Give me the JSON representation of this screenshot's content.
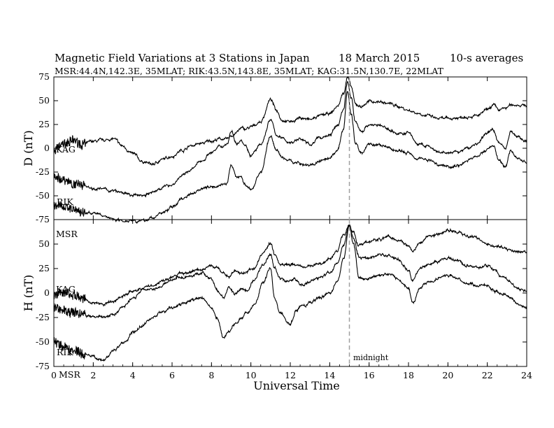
{
  "header": {
    "title": "Magnetic Field Variations at 3 Stations in Japan",
    "date": "18  March   2015",
    "averaging": "10-s averages",
    "stations": "MSR:44.4N,142.3E, 35MLAT;   RIK:43.5N,143.8E, 35MLAT;  KAG:31.5N,130.7E, 22MLAT"
  },
  "annotation": {
    "midnight": "midnight",
    "midnight_ut": 15
  },
  "xaxis": {
    "label": "Universal Time",
    "range": [
      0,
      24
    ],
    "ticks": [
      0,
      2,
      4,
      6,
      8,
      10,
      12,
      14,
      16,
      18,
      20,
      22,
      24
    ]
  },
  "colors": {
    "trace": "#000000",
    "axis": "#000000",
    "midnight_line": "#a0a0a0"
  },
  "chart_data": [
    {
      "type": "line",
      "name": "D",
      "ylabel": "D (nT)",
      "ylim": [
        -75,
        75
      ],
      "yticks": [
        75,
        50,
        25,
        0,
        -25,
        -50,
        -75
      ],
      "x": [
        0,
        0.5,
        1,
        1.5,
        2,
        2.5,
        3,
        3.5,
        4,
        4.5,
        5,
        5.5,
        6,
        6.5,
        7,
        7.5,
        8,
        8.5,
        8.8,
        9,
        9.3,
        9.5,
        9.7,
        10,
        10.5,
        11,
        11.3,
        11.6,
        12,
        12.5,
        13,
        13.5,
        14,
        14.4,
        14.7,
        14.9,
        15.1,
        15.3,
        15.6,
        16,
        16.5,
        17,
        17.5,
        18,
        18.5,
        19,
        19.5,
        20,
        20.5,
        21,
        21.5,
        22,
        22.3,
        22.6,
        22.9,
        23.2,
        23.5,
        24
      ],
      "series": [
        {
          "label": "KAG",
          "values": [
            -3,
            5,
            8,
            4,
            7,
            8,
            10,
            2,
            -6,
            -14,
            -17,
            -12,
            -8,
            -2,
            3,
            5,
            8,
            10,
            9,
            13,
            17,
            21,
            20,
            22,
            28,
            51,
            40,
            30,
            28,
            32,
            30,
            34,
            36,
            44,
            58,
            75,
            64,
            46,
            44,
            49,
            49,
            47,
            44,
            40,
            37,
            34,
            31,
            31,
            32,
            34,
            34,
            40,
            45,
            40,
            42,
            45,
            46,
            45
          ]
        },
        {
          "label": "RIK",
          "values": [
            -30,
            -33,
            -37,
            -38,
            -42,
            -43,
            -45,
            -47,
            -50,
            -49,
            -47,
            -41,
            -38,
            -29,
            -22,
            -13,
            -4,
            2,
            5,
            18,
            5,
            10,
            4,
            -7,
            3,
            30,
            14,
            10,
            6,
            10,
            4,
            11,
            14,
            24,
            41,
            70,
            52,
            28,
            18,
            25,
            24,
            20,
            15,
            16,
            4,
            2,
            -5,
            -5,
            -4,
            0,
            5,
            16,
            20,
            6,
            0,
            18,
            12,
            7
          ]
        },
        {
          "label": "MSR",
          "values": [
            -60,
            -62,
            -65,
            -67,
            -68,
            -71,
            -74,
            -76,
            -75,
            -77,
            -73,
            -68,
            -62,
            -53,
            -47,
            -42,
            -40,
            -38,
            -37,
            -18,
            -30,
            -30,
            -38,
            -44,
            -25,
            13,
            -2,
            -10,
            -13,
            -16,
            -18,
            -14,
            -12,
            -2,
            20,
            60,
            36,
            6,
            -5,
            5,
            3,
            0,
            -3,
            -5,
            -10,
            -12,
            -17,
            -19,
            -18,
            -13,
            -8,
            -2,
            4,
            -14,
            -20,
            -2,
            -10,
            -16
          ]
        }
      ],
      "labels": [
        {
          "text": "KAG",
          "series": "KAG"
        },
        {
          "text": "RIK",
          "series": "RIK"
        }
      ]
    },
    {
      "type": "line",
      "name": "H",
      "ylabel": "H (nT)",
      "ylim": [
        -75,
        75
      ],
      "yticks": [
        50,
        25,
        0,
        -25,
        -50,
        -75
      ],
      "x": [
        0,
        0.5,
        1,
        1.5,
        2,
        2.5,
        3,
        3.5,
        4,
        4.5,
        5,
        5.5,
        6,
        6.5,
        7,
        7.5,
        8,
        8.3,
        8.6,
        8.9,
        9.2,
        9.5,
        9.8,
        10.2,
        10.6,
        11,
        11.2,
        11.5,
        12,
        12.3,
        12.6,
        13,
        13.5,
        14,
        14.4,
        14.7,
        15,
        15.2,
        15.5,
        16,
        16.5,
        17,
        17.5,
        18,
        18.2,
        18.6,
        19,
        19.5,
        20,
        20.5,
        21,
        21.5,
        22,
        22.4,
        22.8,
        23.2,
        23.6,
        24
      ],
      "series": [
        {
          "label": "MSR",
          "values": [
            -2,
            0,
            -3,
            -5,
            -10,
            -12,
            -8,
            -3,
            2,
            5,
            8,
            12,
            16,
            20,
            22,
            24,
            28,
            25,
            20,
            18,
            22,
            20,
            22,
            26,
            40,
            51,
            40,
            30,
            30,
            28,
            26,
            28,
            30,
            35,
            44,
            60,
            70,
            62,
            48,
            52,
            55,
            58,
            54,
            50,
            42,
            52,
            58,
            60,
            64,
            62,
            58,
            56,
            51,
            48,
            46,
            44,
            42,
            41
          ]
        },
        {
          "label": "KAG",
          "values": [
            -15,
            -18,
            -20,
            -22,
            -24,
            -25,
            -22,
            -15,
            -5,
            3,
            5,
            8,
            14,
            16,
            18,
            20,
            14,
            3,
            -5,
            5,
            -2,
            5,
            2,
            14,
            28,
            38,
            25,
            14,
            12,
            14,
            8,
            12,
            15,
            20,
            32,
            50,
            68,
            55,
            36,
            35,
            40,
            38,
            34,
            25,
            14,
            25,
            30,
            33,
            35,
            32,
            28,
            26,
            28,
            22,
            16,
            10,
            4,
            2
          ]
        },
        {
          "label": "RIK",
          "values": [
            -50,
            -55,
            -60,
            -62,
            -65,
            -68,
            -60,
            -52,
            -42,
            -32,
            -25,
            -20,
            -15,
            -12,
            -8,
            -5,
            -15,
            -28,
            -46,
            -38,
            -32,
            -25,
            -20,
            -12,
            10,
            25,
            -5,
            -20,
            -32,
            -18,
            -14,
            -10,
            -5,
            0,
            12,
            35,
            68,
            50,
            15,
            15,
            18,
            20,
            15,
            5,
            -10,
            5,
            12,
            15,
            18,
            14,
            10,
            8,
            8,
            2,
            -2,
            -5,
            -12,
            -15
          ]
        }
      ],
      "labels": [
        {
          "text": "MSR",
          "series": "MSR"
        },
        {
          "text": "KAG",
          "series": "KAG"
        },
        {
          "text": "RIK",
          "series": "RIK"
        },
        {
          "text": "MSR",
          "series": "MSR"
        }
      ]
    }
  ]
}
